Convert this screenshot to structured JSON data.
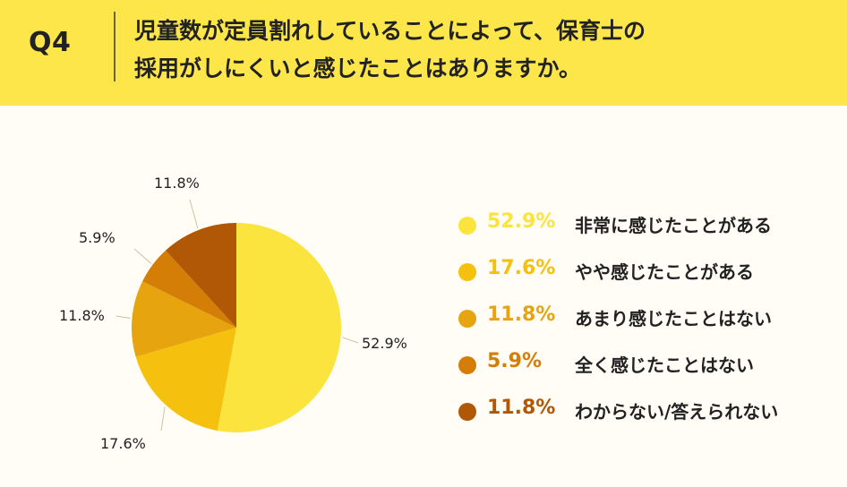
{
  "header": {
    "q_label": "Q4",
    "question_line1": "児童数が定員割れしていることによって、保育士の",
    "question_line2": "採用がしにくいと感じたことはありますか。"
  },
  "chart_data": {
    "type": "pie",
    "title": "",
    "start_angle": "top",
    "direction": "clockwise",
    "legend_position": "right",
    "slices": [
      {
        "label": "非常に感じたことがある",
        "value": 52.9,
        "value_label": "52.9%",
        "color": "#fbe43e"
      },
      {
        "label": "やや感じたことがある",
        "value": 17.6,
        "value_label": "17.6%",
        "color": "#f6c10e"
      },
      {
        "label": "あまり感じたことはない",
        "value": 11.8,
        "value_label": "11.8%",
        "color": "#e6a40e"
      },
      {
        "label": "全く感じたことはない",
        "value": 5.9,
        "value_label": "5.9%",
        "color": "#d47e08"
      },
      {
        "label": "わからない/答えられない",
        "value": 11.8,
        "value_label": "11.8%",
        "color": "#b05805"
      }
    ]
  }
}
